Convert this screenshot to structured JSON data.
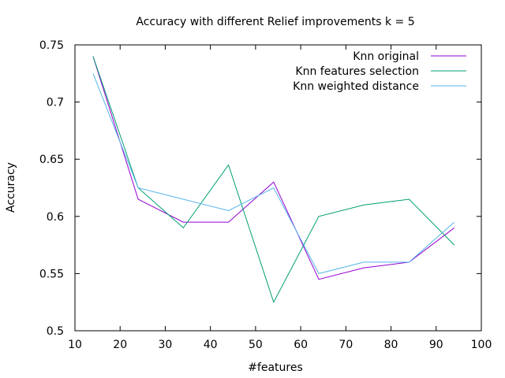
{
  "chart_data": {
    "type": "line",
    "title": "Accuracy with different Relief improvements k = 5",
    "xlabel": "#features",
    "ylabel": "Accuracy",
    "xlim": [
      10,
      100
    ],
    "ylim": [
      0.5,
      0.75
    ],
    "xticks": [
      10,
      20,
      30,
      40,
      50,
      60,
      70,
      80,
      90,
      100
    ],
    "xtick_labels": [
      "10",
      "20",
      "30",
      "40",
      "50",
      "60",
      "70",
      "80",
      "90",
      "100"
    ],
    "yticks": [
      0.5,
      0.55,
      0.6,
      0.65,
      0.7,
      0.75
    ],
    "ytick_labels": [
      "0.5",
      "0.55",
      "0.6",
      "0.65",
      "0.7",
      "0.75"
    ],
    "grid": false,
    "legend_position": "top-right",
    "x": [
      14,
      24,
      34,
      44,
      54,
      64,
      74,
      84,
      94
    ],
    "series": [
      {
        "name": "Knn original",
        "color": "#9400d3",
        "values": [
          0.74,
          0.615,
          0.595,
          0.595,
          0.63,
          0.545,
          0.555,
          0.56,
          0.59
        ]
      },
      {
        "name": "Knn features selection",
        "color": "#009e73",
        "values": [
          0.74,
          0.625,
          0.59,
          0.645,
          0.525,
          0.6,
          0.61,
          0.615,
          0.575
        ]
      },
      {
        "name": "Knn weighted distance",
        "color": "#56b4e9",
        "values": [
          0.725,
          0.625,
          0.615,
          0.605,
          0.625,
          0.55,
          0.56,
          0.56,
          0.595
        ]
      }
    ]
  }
}
